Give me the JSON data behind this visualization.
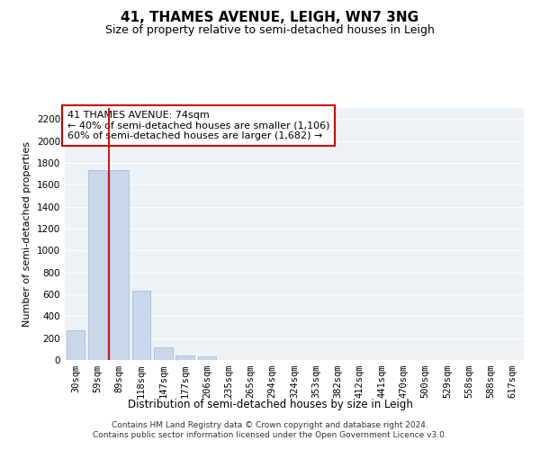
{
  "title": "41, THAMES AVENUE, LEIGH, WN7 3NG",
  "subtitle": "Size of property relative to semi-detached houses in Leigh",
  "xlabel": "Distribution of semi-detached houses by size in Leigh",
  "ylabel": "Number of semi-detached properties",
  "categories": [
    "30sqm",
    "59sqm",
    "89sqm",
    "118sqm",
    "147sqm",
    "177sqm",
    "206sqm",
    "235sqm",
    "265sqm",
    "294sqm",
    "324sqm",
    "353sqm",
    "382sqm",
    "412sqm",
    "441sqm",
    "470sqm",
    "500sqm",
    "529sqm",
    "558sqm",
    "588sqm",
    "617sqm"
  ],
  "values": [
    270,
    1730,
    1730,
    630,
    115,
    40,
    30,
    0,
    0,
    0,
    0,
    0,
    0,
    0,
    0,
    0,
    0,
    0,
    0,
    0,
    0
  ],
  "bar_color": "#c8d8ea",
  "bar_edge_color": "#9ab5cc",
  "vline_x": 1.5,
  "vline_color": "#cc0000",
  "annotation_text": "41 THAMES AVENUE: 74sqm\n← 40% of semi-detached houses are smaller (1,106)\n60% of semi-detached houses are larger (1,682) →",
  "annotation_box_facecolor": "#ffffff",
  "annotation_box_edgecolor": "#cc0000",
  "ylim": [
    0,
    2300
  ],
  "yticks": [
    0,
    200,
    400,
    600,
    800,
    1000,
    1200,
    1400,
    1600,
    1800,
    2000,
    2200
  ],
  "background_color": "#edf2f7",
  "grid_color": "#ffffff",
  "footer": "Contains HM Land Registry data © Crown copyright and database right 2024.\nContains public sector information licensed under the Open Government Licence v3.0.",
  "title_fontsize": 11,
  "subtitle_fontsize": 9,
  "xlabel_fontsize": 8.5,
  "ylabel_fontsize": 8,
  "tick_fontsize": 7.5,
  "annotation_fontsize": 8,
  "footer_fontsize": 6.5
}
